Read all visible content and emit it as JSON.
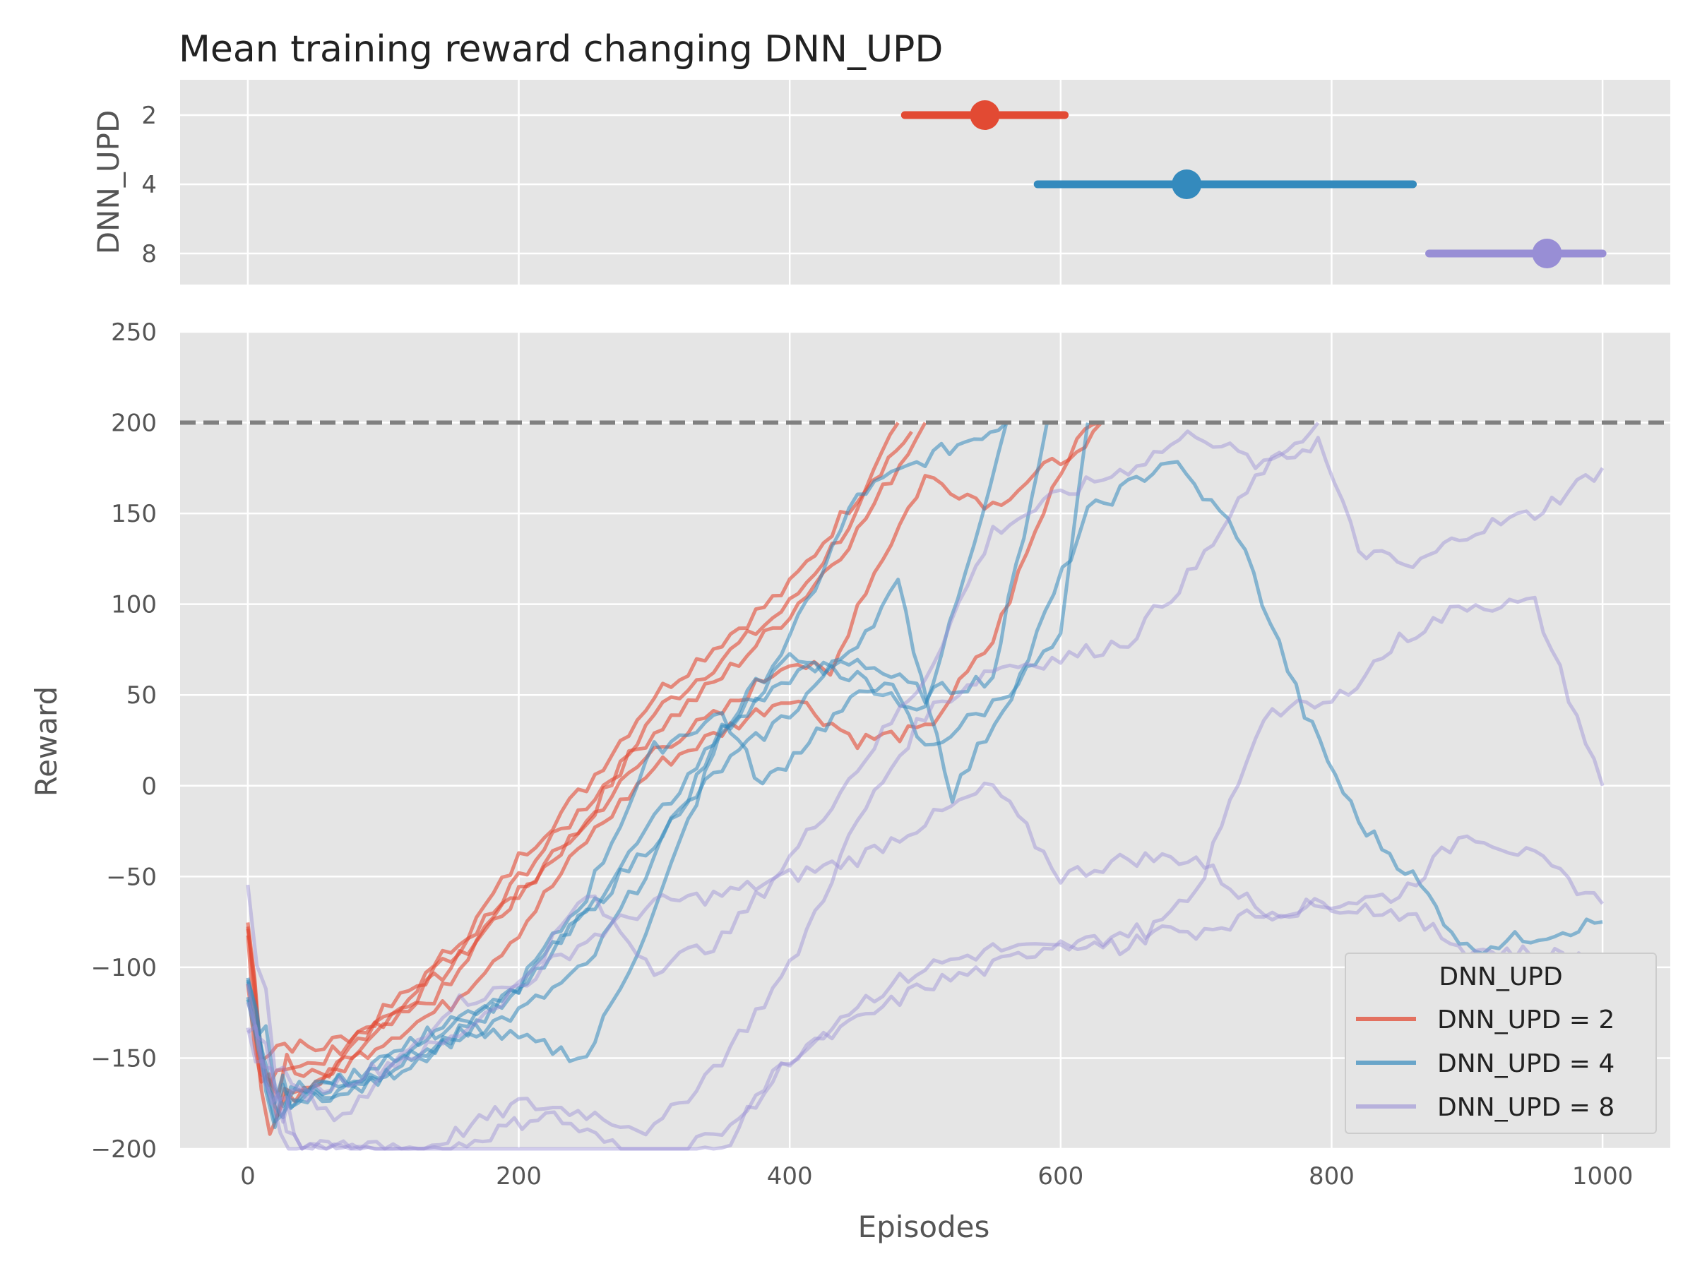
{
  "chart_data": [
    {
      "type": "interval",
      "title": "Mean training reward changing DNN_UPD",
      "ylabel": "DNN_UPD",
      "categories": [
        "2",
        "4",
        "8"
      ],
      "series": [
        {
          "name": "DNN_UPD = 2",
          "center": 544,
          "low": 485,
          "high": 603,
          "color": "#E24A33"
        },
        {
          "name": "DNN_UPD = 4",
          "center": 693,
          "low": 583,
          "high": 860,
          "color": "#348ABD"
        },
        {
          "name": "DNN_UPD = 8",
          "center": 959,
          "low": 872,
          "high": 1000,
          "color": "#988ED5"
        }
      ],
      "xlim": [
        -50,
        1050
      ],
      "grid": true
    },
    {
      "type": "line",
      "xlabel": "Episodes",
      "ylabel": "Reward",
      "xlim": [
        -50,
        1050
      ],
      "ylim": [
        -200,
        250
      ],
      "xticks": [
        "0",
        "200",
        "400",
        "600",
        "800",
        "1000"
      ],
      "yticks": [
        "−200",
        "−150",
        "−100",
        "−50",
        "0",
        "50",
        "100",
        "150",
        "200",
        "250"
      ],
      "threshold": 200,
      "grid": true,
      "legend": {
        "title": "DNN_UPD",
        "position": "lower right"
      },
      "series": [
        {
          "name": "DNN_UPD = 2",
          "color": "#E24A33",
          "opacity": 0.6,
          "runs": [
            [
              [
                0,
                -75
              ],
              [
                10,
                -140
              ],
              [
                50,
                -145
              ],
              [
                100,
                -130
              ],
              [
                150,
                -100
              ],
              [
                200,
                -60
              ],
              [
                250,
                -20
              ],
              [
                300,
                40
              ],
              [
                350,
                70
              ],
              [
                400,
                100
              ],
              [
                450,
                150
              ],
              [
                480,
                200
              ]
            ],
            [
              [
                0,
                -85
              ],
              [
                10,
                -150
              ],
              [
                50,
                -155
              ],
              [
                100,
                -125
              ],
              [
                150,
                -95
              ],
              [
                200,
                -40
              ],
              [
                250,
                0
              ],
              [
                300,
                50
              ],
              [
                350,
                80
              ],
              [
                400,
                110
              ],
              [
                450,
                160
              ],
              [
                490,
                195
              ]
            ],
            [
              [
                0,
                -80
              ],
              [
                10,
                -160
              ],
              [
                60,
                -160
              ],
              [
                100,
                -135
              ],
              [
                150,
                -110
              ],
              [
                200,
                -50
              ],
              [
                250,
                -10
              ],
              [
                300,
                30
              ],
              [
                350,
                60
              ],
              [
                400,
                95
              ],
              [
                450,
                140
              ],
              [
                500,
                200
              ]
            ],
            [
              [
                0,
                -95
              ],
              [
                10,
                -170
              ],
              [
                50,
                -165
              ],
              [
                100,
                -130
              ],
              [
                150,
                -90
              ],
              [
                200,
                -60
              ],
              [
                250,
                -20
              ],
              [
                300,
                20
              ],
              [
                350,
                40
              ],
              [
                400,
                70
              ],
              [
                430,
                60
              ],
              [
                450,
                100
              ],
              [
                500,
                170
              ],
              [
                550,
                155
              ],
              [
                600,
                180
              ],
              [
                630,
                200
              ]
            ],
            [
              [
                0,
                -90
              ],
              [
                10,
                -180
              ],
              [
                60,
                -160
              ],
              [
                100,
                -140
              ],
              [
                150,
                -120
              ],
              [
                200,
                -80
              ],
              [
                250,
                -30
              ],
              [
                300,
                10
              ],
              [
                350,
                30
              ],
              [
                400,
                50
              ],
              [
                450,
                25
              ],
              [
                500,
                30
              ],
              [
                550,
                80
              ],
              [
                600,
                175
              ],
              [
                630,
                200
              ]
            ]
          ]
        },
        {
          "name": "DNN_UPD = 4",
          "color": "#348ABD",
          "opacity": 0.55,
          "runs": [
            [
              [
                0,
                -100
              ],
              [
                20,
                -170
              ],
              [
                80,
                -160
              ],
              [
                150,
                -130
              ],
              [
                200,
                -110
              ],
              [
                250,
                -70
              ],
              [
                300,
                -20
              ],
              [
                350,
                30
              ],
              [
                400,
                80
              ],
              [
                450,
                160
              ],
              [
                500,
                180
              ],
              [
                560,
                200
              ]
            ],
            [
              [
                0,
                -110
              ],
              [
                20,
                -175
              ],
              [
                80,
                -165
              ],
              [
                150,
                -140
              ],
              [
                200,
                -125
              ],
              [
                250,
                -100
              ],
              [
                300,
                -40
              ],
              [
                350,
                30
              ],
              [
                400,
                70
              ],
              [
                450,
                60
              ],
              [
                500,
                40
              ],
              [
                560,
                200
              ]
            ],
            [
              [
                0,
                -100
              ],
              [
                20,
                -180
              ],
              [
                90,
                -155
              ],
              [
                150,
                -130
              ],
              [
                200,
                -140
              ],
              [
                250,
                -150
              ],
              [
                300,
                -70
              ],
              [
                350,
                30
              ],
              [
                400,
                60
              ],
              [
                450,
                70
              ],
              [
                500,
                50
              ],
              [
                550,
                60
              ],
              [
                590,
                200
              ]
            ],
            [
              [
                0,
                -120
              ],
              [
                20,
                -170
              ],
              [
                90,
                -160
              ],
              [
                150,
                -140
              ],
              [
                200,
                -110
              ],
              [
                250,
                -60
              ],
              [
                300,
                20
              ],
              [
                350,
                40
              ],
              [
                380,
                0
              ],
              [
                420,
                30
              ],
              [
                470,
                60
              ],
              [
                500,
                20
              ],
              [
                550,
                45
              ],
              [
                600,
                80
              ],
              [
                620,
                200
              ]
            ],
            [
              [
                0,
                -115
              ],
              [
                20,
                -175
              ],
              [
                90,
                -165
              ],
              [
                150,
                -140
              ],
              [
                200,
                -115
              ],
              [
                250,
                -70
              ],
              [
                300,
                -30
              ],
              [
                350,
                10
              ],
              [
                400,
                40
              ],
              [
                450,
                80
              ],
              [
                480,
                110
              ],
              [
                520,
                -5
              ],
              [
                570,
                60
              ],
              [
                620,
                150
              ],
              [
                680,
                180
              ],
              [
                730,
                140
              ],
              [
                780,
                40
              ],
              [
                820,
                -20
              ],
              [
                860,
                -50
              ],
              [
                900,
                -90
              ],
              [
                1000,
                -75
              ]
            ]
          ]
        },
        {
          "name": "DNN_UPD = 8",
          "color": "#988ED5",
          "opacity": 0.45,
          "runs": [
            [
              [
                0,
                -55
              ],
              [
                20,
                -160
              ],
              [
                70,
                -185
              ],
              [
                150,
                -120
              ],
              [
                200,
                -110
              ],
              [
                250,
                -85
              ],
              [
                300,
                -65
              ],
              [
                350,
                -60
              ],
              [
                400,
                -50
              ],
              [
                450,
                -40
              ],
              [
                500,
                -20
              ],
              [
                550,
                0
              ],
              [
                600,
                -50
              ],
              [
                650,
                -40
              ],
              [
                700,
                -40
              ],
              [
                750,
                -70
              ],
              [
                800,
                -65
              ],
              [
                850,
                -60
              ],
              [
                900,
                -25
              ],
              [
                950,
                -40
              ],
              [
                1000,
                -65
              ]
            ],
            [
              [
                0,
                -100
              ],
              [
                20,
                -175
              ],
              [
                80,
                -160
              ],
              [
                150,
                -140
              ],
              [
                200,
                -110
              ],
              [
                250,
                -60
              ],
              [
                300,
                -100
              ],
              [
                350,
                -85
              ],
              [
                400,
                -40
              ],
              [
                450,
                10
              ],
              [
                500,
                60
              ],
              [
                550,
                140
              ],
              [
                600,
                160
              ],
              [
                650,
                175
              ],
              [
                700,
                195
              ],
              [
                750,
                175
              ],
              [
                790,
                200
              ]
            ],
            [
              [
                0,
                -120
              ],
              [
                30,
                -200
              ],
              [
                130,
                -200
              ],
              [
                200,
                -175
              ],
              [
                250,
                -180
              ],
              [
                300,
                -190
              ],
              [
                350,
                -150
              ],
              [
                400,
                -100
              ],
              [
                450,
                -20
              ],
              [
                500,
                40
              ],
              [
                550,
                65
              ],
              [
                600,
                70
              ],
              [
                650,
                80
              ],
              [
                700,
                120
              ],
              [
                750,
                175
              ],
              [
                790,
                190
              ],
              [
                820,
                130
              ],
              [
                860,
                120
              ],
              [
                900,
                140
              ],
              [
                950,
                150
              ],
              [
                1000,
                175
              ]
            ],
            [
              [
                0,
                -130
              ],
              [
                40,
                -200
              ],
              [
                150,
                -200
              ],
              [
                220,
                -180
              ],
              [
                300,
                -210
              ],
              [
                350,
                -200
              ],
              [
                400,
                -150
              ],
              [
                450,
                -130
              ],
              [
                500,
                -110
              ],
              [
                550,
                -100
              ],
              [
                600,
                -85
              ],
              [
                650,
                -90
              ],
              [
                700,
                -60
              ],
              [
                750,
                40
              ],
              [
                800,
                45
              ],
              [
                850,
                80
              ],
              [
                900,
                100
              ],
              [
                950,
                100
              ],
              [
                1000,
                0
              ]
            ],
            [
              [
                0,
                -140
              ],
              [
                40,
                -200
              ],
              [
                200,
                -210
              ],
              [
                300,
                -210
              ],
              [
                350,
                -190
              ],
              [
                400,
                -150
              ],
              [
                450,
                -120
              ],
              [
                500,
                -100
              ],
              [
                550,
                -90
              ],
              [
                600,
                -90
              ],
              [
                650,
                -80
              ],
              [
                700,
                -80
              ],
              [
                750,
                -70
              ],
              [
                800,
                -65
              ],
              [
                850,
                -70
              ],
              [
                900,
                -90
              ],
              [
                1000,
                -95
              ]
            ]
          ]
        }
      ]
    }
  ]
}
